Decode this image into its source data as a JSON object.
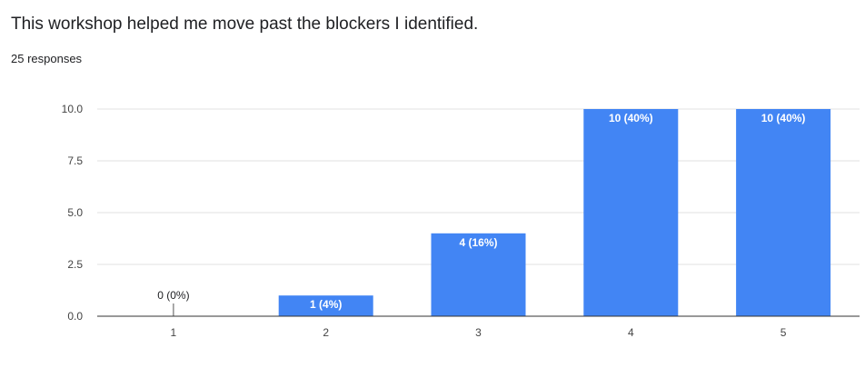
{
  "question": "This workshop helped me move past the blockers I identified.",
  "response_count": "25 responses",
  "colors": {
    "bar": "#4285f4",
    "grid": "#e0e0e0",
    "axis": "#333333"
  },
  "chart_data": {
    "type": "bar",
    "title": "This workshop helped me move past the blockers I identified.",
    "categories": [
      "1",
      "2",
      "3",
      "4",
      "5"
    ],
    "values": [
      0,
      1,
      4,
      10,
      10
    ],
    "data_labels": [
      "0 (0%)",
      "1 (4%)",
      "4 (16%)",
      "10 (40%)",
      "10 (40%)"
    ],
    "y_ticks": [
      "0.0",
      "2.5",
      "5.0",
      "7.5",
      "10.0"
    ],
    "ylim": [
      0,
      10
    ],
    "grid": true,
    "legend": "none"
  }
}
